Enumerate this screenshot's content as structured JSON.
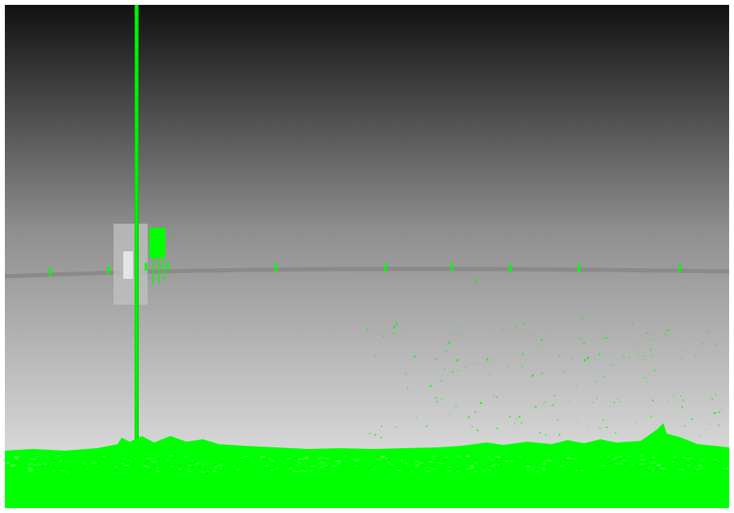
{
  "image": {
    "kind": "segmentation overlay on grayscale depth-like photograph",
    "colors": {
      "frame": "#ffffff",
      "sky_top": "#111111",
      "sky_mid": "#8f8f8f",
      "sky_bottom": "#e6e6e6",
      "overlay_green": "#00ff00",
      "wire": "#8a8a8a",
      "pole_box_gray": "#c8c8c8"
    },
    "layers": [
      "gradient-sky",
      "power-line-wire",
      "utility-pole",
      "pole-mounted-transformer",
      "insulators",
      "ground-vegetation-overlay"
    ]
  }
}
